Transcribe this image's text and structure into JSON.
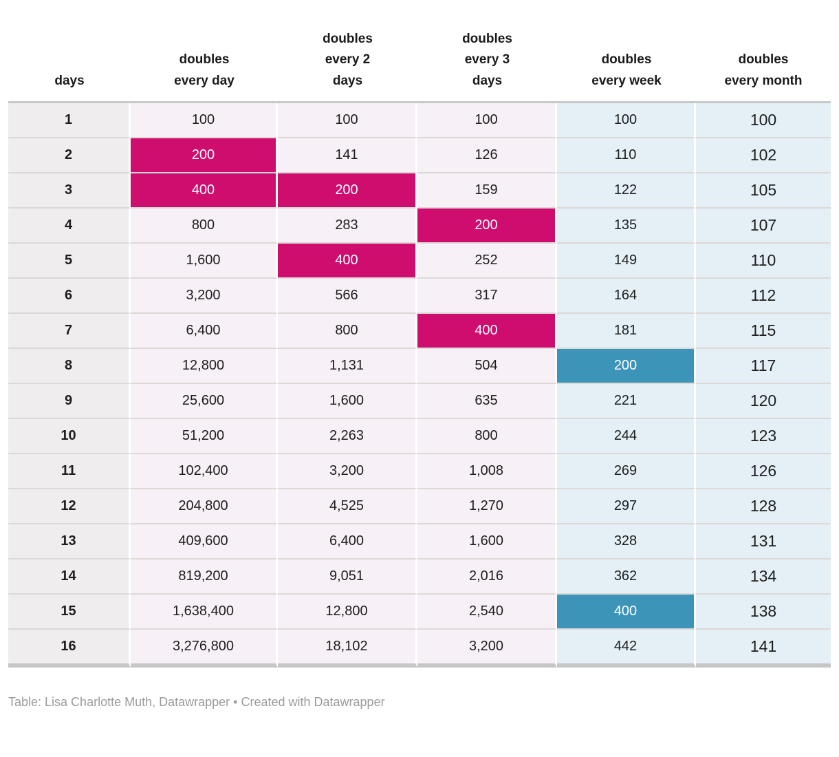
{
  "chart_data": {
    "type": "table",
    "title": "",
    "columns": [
      "days",
      "doubles every day",
      "doubles every 2 days",
      "doubles every 3 days",
      "doubles every week",
      "doubles every month"
    ],
    "rows": [
      [
        "1",
        "100",
        "100",
        "100",
        "100",
        "100"
      ],
      [
        "2",
        "200",
        "141",
        "126",
        "110",
        "102"
      ],
      [
        "3",
        "400",
        "200",
        "159",
        "122",
        "105"
      ],
      [
        "4",
        "800",
        "283",
        "200",
        "135",
        "107"
      ],
      [
        "5",
        "1,600",
        "400",
        "252",
        "149",
        "110"
      ],
      [
        "6",
        "3,200",
        "566",
        "317",
        "164",
        "112"
      ],
      [
        "7",
        "6,400",
        "800",
        "400",
        "181",
        "115"
      ],
      [
        "8",
        "12,800",
        "1,131",
        "504",
        "200",
        "117"
      ],
      [
        "9",
        "25,600",
        "1,600",
        "635",
        "221",
        "120"
      ],
      [
        "10",
        "51,200",
        "2,263",
        "800",
        "244",
        "123"
      ],
      [
        "11",
        "102,400",
        "3,200",
        "1,008",
        "269",
        "126"
      ],
      [
        "12",
        "204,800",
        "4,525",
        "1,270",
        "297",
        "128"
      ],
      [
        "13",
        "409,600",
        "6,400",
        "1,600",
        "328",
        "131"
      ],
      [
        "14",
        "819,200",
        "9,051",
        "2,016",
        "362",
        "134"
      ],
      [
        "15",
        "1,638,400",
        "12,800",
        "2,540",
        "400",
        "138"
      ],
      [
        "16",
        "3,276,800",
        "18,102",
        "3,200",
        "442",
        "141"
      ]
    ]
  },
  "table": {
    "header_labels": [
      "days",
      "doubles\nevery day",
      "doubles\nevery 2\ndays",
      "doubles\nevery 3\ndays",
      "doubles\nevery week",
      "doubles\nevery month"
    ],
    "highlights": {
      "magenta": [
        [
          2,
          1
        ],
        [
          3,
          1
        ],
        [
          3,
          2
        ],
        [
          5,
          2
        ],
        [
          4,
          3
        ],
        [
          7,
          3
        ]
      ],
      "blue": [
        [
          8,
          4
        ],
        [
          15,
          4
        ]
      ]
    }
  },
  "colors": {
    "highlight_magenta": "#ce0d6e",
    "highlight_blue": "#3d94b9",
    "col_days_bg": "#efeded",
    "col_pink_bg": "#f7f0f6",
    "col_blue_bg": "#e4f0f6",
    "border_gray": "#c9c9c9"
  },
  "footer": {
    "attribution": "Table: Lisa Charlotte Muth, Datawrapper • Created with Datawrapper"
  }
}
